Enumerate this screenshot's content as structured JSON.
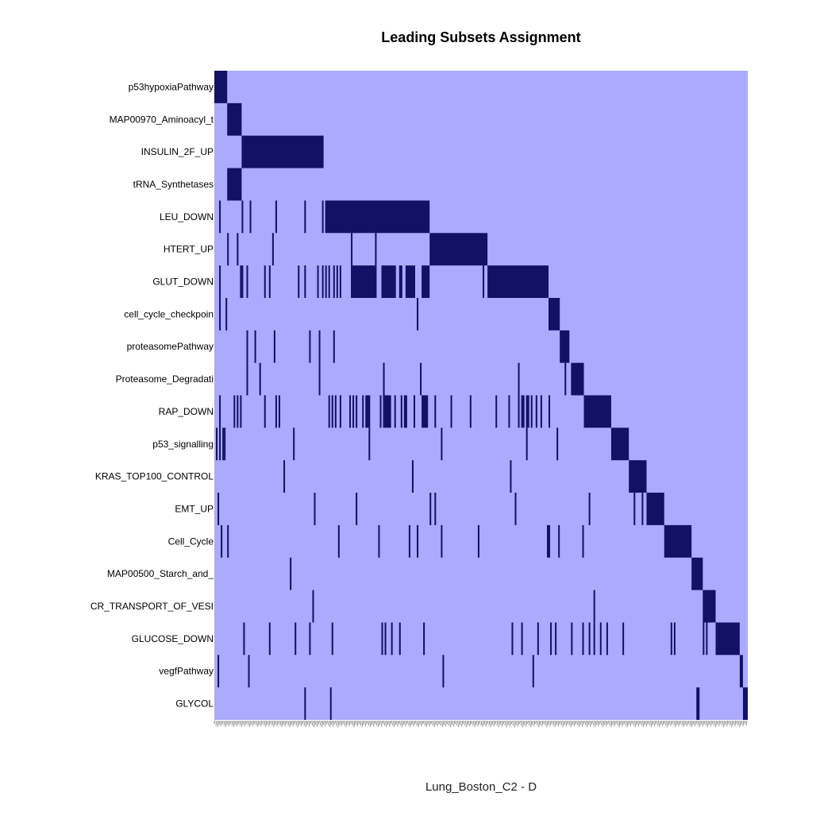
{
  "chart_data": {
    "type": "heatmap",
    "title": "Leading Subsets Assignment",
    "xlabel": "Lung_Boston_C2 - D",
    "x_tick_labels_legible": false,
    "colors": {
      "background": "#AAAAFF",
      "member": "#111166",
      "tick": "#888888"
    },
    "n_columns": 332,
    "rows": [
      {
        "label": "p53hypoxiaPathway",
        "runs": [
          [
            0,
            8
          ]
        ]
      },
      {
        "label": "MAP00970_Aminoacyl_t",
        "runs": [
          [
            8,
            17
          ]
        ]
      },
      {
        "label": "INSULIN_2F_UP",
        "runs": [
          [
            17,
            68
          ]
        ]
      },
      {
        "label": "tRNA_Synthetases",
        "runs": [
          [
            8,
            17
          ]
        ]
      },
      {
        "label": "LEU_DOWN",
        "runs": [
          [
            3,
            4
          ],
          [
            17,
            18
          ],
          [
            22,
            23
          ],
          [
            38,
            39
          ],
          [
            56,
            57
          ],
          [
            67,
            68
          ],
          [
            69,
            134
          ]
        ]
      },
      {
        "label": "HTERT_UP",
        "runs": [
          [
            8,
            9
          ],
          [
            14,
            15
          ],
          [
            36,
            37
          ],
          [
            85,
            86
          ],
          [
            100,
            101
          ],
          [
            134,
            170
          ]
        ]
      },
      {
        "label": "GLUT_DOWN",
        "runs": [
          [
            3,
            4
          ],
          [
            16,
            17
          ],
          [
            17,
            18
          ],
          [
            20,
            21
          ],
          [
            31,
            32
          ],
          [
            34,
            35
          ],
          [
            52,
            53
          ],
          [
            56,
            57
          ],
          [
            64,
            65
          ],
          [
            67,
            68
          ],
          [
            69,
            70
          ],
          [
            71,
            72
          ],
          [
            74,
            75
          ],
          [
            76,
            77
          ],
          [
            78,
            79
          ],
          [
            85,
            101
          ],
          [
            104,
            113
          ],
          [
            115,
            117
          ],
          [
            119,
            125
          ],
          [
            129,
            134
          ],
          [
            167,
            168
          ],
          [
            170,
            208
          ]
        ]
      },
      {
        "label": "cell_cycle_checkpoin",
        "runs": [
          [
            3,
            4
          ],
          [
            7,
            8
          ],
          [
            126,
            127
          ],
          [
            208,
            215
          ]
        ]
      },
      {
        "label": "proteasomePathway",
        "runs": [
          [
            20,
            21
          ],
          [
            25,
            26
          ],
          [
            37,
            38
          ],
          [
            59,
            60
          ],
          [
            65,
            66
          ],
          [
            74,
            75
          ],
          [
            215,
            221
          ]
        ]
      },
      {
        "label": "Proteasome_Degradati",
        "runs": [
          [
            20,
            21
          ],
          [
            28,
            29
          ],
          [
            65,
            66
          ],
          [
            105,
            106
          ],
          [
            128,
            129
          ],
          [
            189,
            190
          ],
          [
            218,
            219
          ],
          [
            222,
            230
          ]
        ]
      },
      {
        "label": "RAP_DOWN",
        "runs": [
          [
            3,
            4
          ],
          [
            12,
            13
          ],
          [
            14,
            15
          ],
          [
            16,
            17
          ],
          [
            31,
            32
          ],
          [
            38,
            39
          ],
          [
            40,
            41
          ],
          [
            71,
            72
          ],
          [
            73,
            74
          ],
          [
            75,
            76
          ],
          [
            78,
            79
          ],
          [
            84,
            85
          ],
          [
            86,
            87
          ],
          [
            88,
            89
          ],
          [
            92,
            93
          ],
          [
            94,
            97
          ],
          [
            103,
            104
          ],
          [
            105,
            106
          ],
          [
            106,
            110
          ],
          [
            112,
            113
          ],
          [
            116,
            117
          ],
          [
            118,
            120
          ],
          [
            124,
            125
          ],
          [
            129,
            133
          ],
          [
            137,
            138
          ],
          [
            147,
            148
          ],
          [
            159,
            160
          ],
          [
            175,
            176
          ],
          [
            183,
            184
          ],
          [
            189,
            190
          ],
          [
            191,
            193
          ],
          [
            194,
            196
          ],
          [
            197,
            198
          ],
          [
            200,
            201
          ],
          [
            203,
            204
          ],
          [
            208,
            209
          ],
          [
            230,
            247
          ]
        ]
      },
      {
        "label": "p53_signalling",
        "runs": [
          [
            1,
            2
          ],
          [
            3,
            4
          ],
          [
            5,
            6
          ],
          [
            6,
            7
          ],
          [
            49,
            50
          ],
          [
            96,
            97
          ],
          [
            141,
            142
          ],
          [
            194,
            195
          ],
          [
            213,
            214
          ],
          [
            247,
            258
          ]
        ]
      },
      {
        "label": "KRAS_TOP100_CONTROL",
        "runs": [
          [
            43,
            44
          ],
          [
            123,
            124
          ],
          [
            184,
            185
          ],
          [
            258,
            269
          ]
        ]
      },
      {
        "label": "EMT_UP",
        "runs": [
          [
            2,
            3
          ],
          [
            62,
            63
          ],
          [
            88,
            89
          ],
          [
            134,
            135
          ],
          [
            137,
            138
          ],
          [
            187,
            188
          ],
          [
            233,
            234
          ],
          [
            261,
            262
          ],
          [
            266,
            267
          ],
          [
            269,
            280
          ]
        ]
      },
      {
        "label": "Cell_Cycle",
        "runs": [
          [
            4,
            5
          ],
          [
            8,
            9
          ],
          [
            77,
            78
          ],
          [
            102,
            103
          ],
          [
            121,
            122
          ],
          [
            126,
            127
          ],
          [
            141,
            142
          ],
          [
            164,
            165
          ],
          [
            207,
            209
          ],
          [
            214,
            215
          ],
          [
            229,
            230
          ],
          [
            280,
            297
          ]
        ]
      },
      {
        "label": "MAP00500_Starch_and_",
        "runs": [
          [
            47,
            48
          ],
          [
            297,
            304
          ]
        ]
      },
      {
        "label": "CR_TRANSPORT_OF_VESI",
        "runs": [
          [
            61,
            62
          ],
          [
            236,
            237
          ],
          [
            304,
            312
          ]
        ]
      },
      {
        "label": "GLUCOSE_DOWN",
        "runs": [
          [
            18,
            19
          ],
          [
            34,
            35
          ],
          [
            50,
            51
          ],
          [
            59,
            60
          ],
          [
            73,
            74
          ],
          [
            104,
            105
          ],
          [
            106,
            107
          ],
          [
            110,
            111
          ],
          [
            115,
            116
          ],
          [
            130,
            131
          ],
          [
            185,
            186
          ],
          [
            191,
            192
          ],
          [
            201,
            202
          ],
          [
            209,
            210
          ],
          [
            212,
            213
          ],
          [
            222,
            223
          ],
          [
            229,
            230
          ],
          [
            233,
            234
          ],
          [
            236,
            237
          ],
          [
            240,
            241
          ],
          [
            244,
            245
          ],
          [
            254,
            255
          ],
          [
            284,
            285
          ],
          [
            286,
            287
          ],
          [
            304,
            305
          ],
          [
            306,
            307
          ],
          [
            312,
            327
          ]
        ]
      },
      {
        "label": "vegfPathway",
        "runs": [
          [
            2,
            3
          ],
          [
            21,
            22
          ],
          [
            142,
            143
          ],
          [
            198,
            199
          ],
          [
            327,
            329
          ]
        ]
      },
      {
        "label": "GLYCOL",
        "runs": [
          [
            56,
            57
          ],
          [
            72,
            73
          ],
          [
            300,
            302
          ],
          [
            329,
            332
          ]
        ]
      }
    ]
  }
}
